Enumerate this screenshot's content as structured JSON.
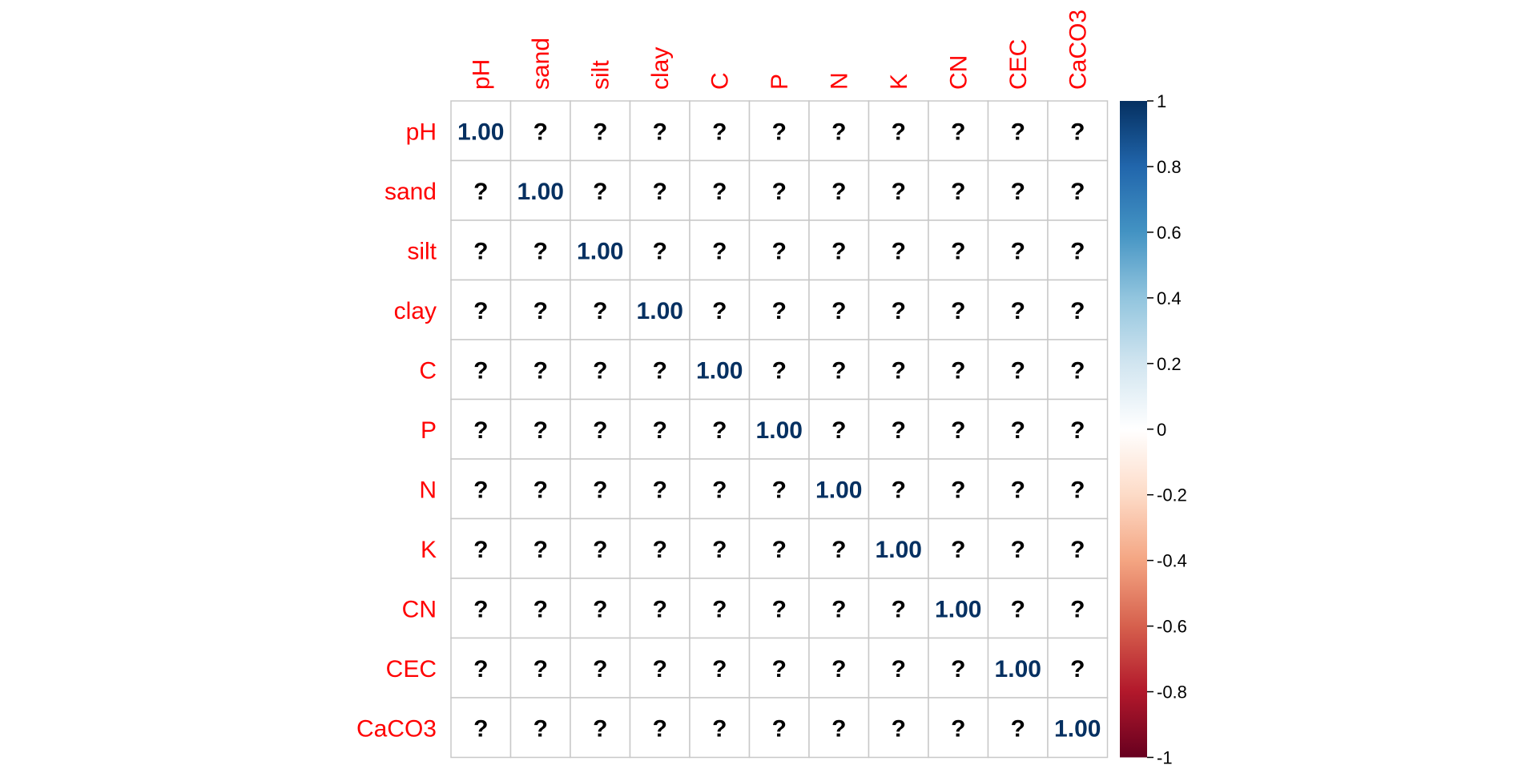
{
  "chart_data": {
    "type": "heatmap",
    "variables": [
      "pH",
      "sand",
      "silt",
      "clay",
      "C",
      "P",
      "N",
      "K",
      "CN",
      "CEC",
      "CaCO3"
    ],
    "rows": [
      "pH",
      "sand",
      "silt",
      "clay",
      "C",
      "P",
      "N",
      "K",
      "CN",
      "CEC",
      "CaCO3"
    ],
    "columns": [
      "pH",
      "sand",
      "silt",
      "clay",
      "C",
      "P",
      "N",
      "K",
      "CN",
      "CEC",
      "CaCO3"
    ],
    "cells": [
      [
        "1.00",
        "?",
        "?",
        "?",
        "?",
        "?",
        "?",
        "?",
        "?",
        "?",
        "?"
      ],
      [
        "?",
        "1.00",
        "?",
        "?",
        "?",
        "?",
        "?",
        "?",
        "?",
        "?",
        "?"
      ],
      [
        "?",
        "?",
        "1.00",
        "?",
        "?",
        "?",
        "?",
        "?",
        "?",
        "?",
        "?"
      ],
      [
        "?",
        "?",
        "?",
        "1.00",
        "?",
        "?",
        "?",
        "?",
        "?",
        "?",
        "?"
      ],
      [
        "?",
        "?",
        "?",
        "?",
        "1.00",
        "?",
        "?",
        "?",
        "?",
        "?",
        "?"
      ],
      [
        "?",
        "?",
        "?",
        "?",
        "?",
        "1.00",
        "?",
        "?",
        "?",
        "?",
        "?"
      ],
      [
        "?",
        "?",
        "?",
        "?",
        "?",
        "?",
        "1.00",
        "?",
        "?",
        "?",
        "?"
      ],
      [
        "?",
        "?",
        "?",
        "?",
        "?",
        "?",
        "?",
        "1.00",
        "?",
        "?",
        "?"
      ],
      [
        "?",
        "?",
        "?",
        "?",
        "?",
        "?",
        "?",
        "?",
        "1.00",
        "?",
        "?"
      ],
      [
        "?",
        "?",
        "?",
        "?",
        "?",
        "?",
        "?",
        "?",
        "?",
        "1.00",
        "?"
      ],
      [
        "?",
        "?",
        "?",
        "?",
        "?",
        "?",
        "?",
        "?",
        "?",
        "?",
        "1.00"
      ]
    ],
    "colorbar": {
      "ticks": [
        "1",
        "0.8",
        "0.6",
        "0.4",
        "0.2",
        "0",
        "-0.2",
        "-0.4",
        "-0.6",
        "-0.8",
        "-1"
      ],
      "range": [
        -1,
        1
      ],
      "colors": [
        "#67001f",
        "#b2182b",
        "#d6604d",
        "#f4a582",
        "#fddbc7",
        "#ffffff",
        "#d1e5f0",
        "#92c5de",
        "#4393c3",
        "#2166ac",
        "#053061"
      ]
    },
    "label_color": "#ff0000",
    "grid": true
  }
}
